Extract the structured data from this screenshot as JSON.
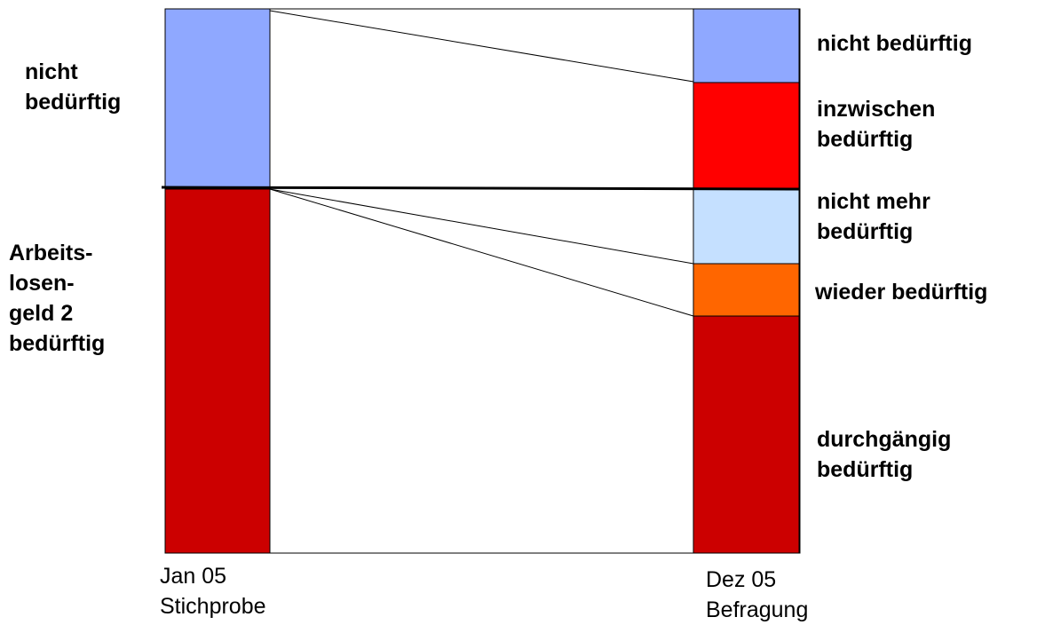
{
  "left_column": {
    "segments": [
      {
        "label": "nicht\nbedürftig",
        "value": 33,
        "color": "#8fa8ff"
      },
      {
        "label": "Arbeits-\nlosen-\ngeld 2\nbedürftig",
        "value": 67,
        "color": "#cc0000"
      }
    ],
    "period": "Jan 05",
    "source": "Stichprobe"
  },
  "right_column": {
    "segments": [
      {
        "label": "nicht bedürftig",
        "value": 14,
        "color": "#8fa8ff"
      },
      {
        "label": "inzwischen\nbedürftig",
        "value": 19.5,
        "color": "#ff0000"
      },
      {
        "label": "nicht mehr\nbedürftig",
        "value": 13.5,
        "color": "#c5e0ff"
      },
      {
        "label": "wieder bedürftig",
        "value": 9.5,
        "color": "#ff6600"
      },
      {
        "label": "durchgängig\nbedürftig",
        "value": 43.5,
        "color": "#cc0000"
      }
    ],
    "period": "Dez 05",
    "source": "Befragung"
  }
}
